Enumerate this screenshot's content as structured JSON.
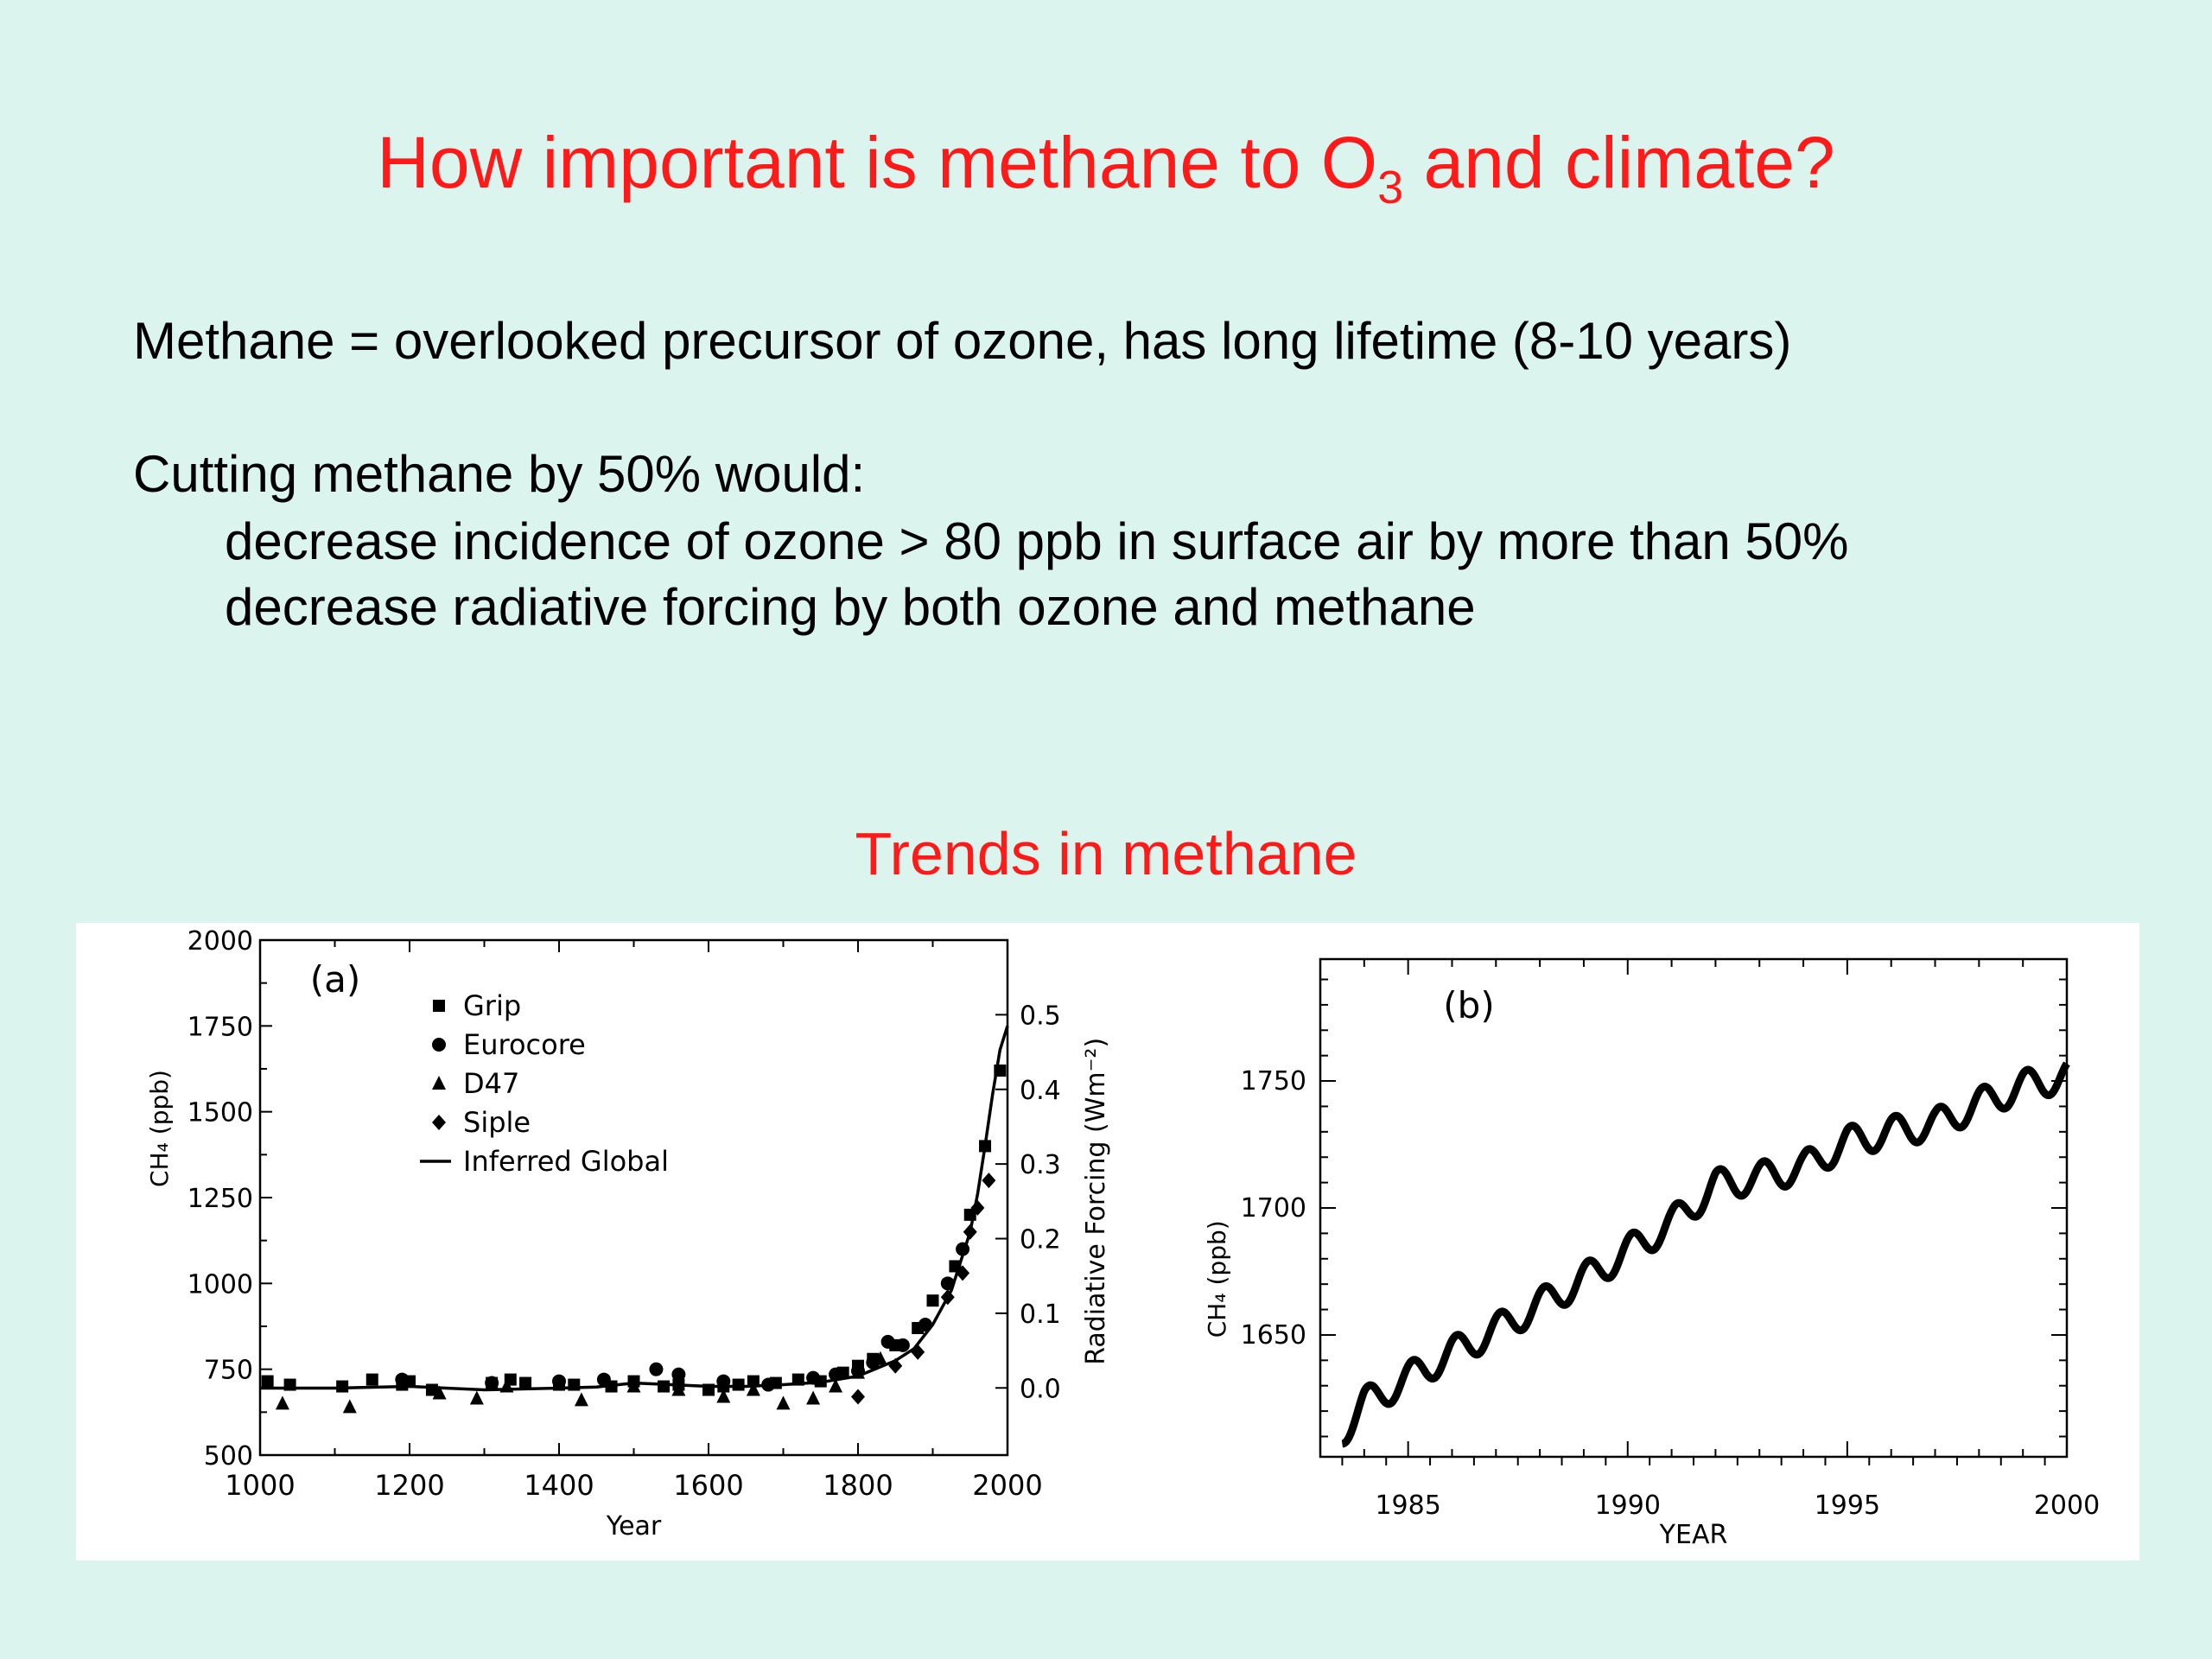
{
  "slide": {
    "title_pre": "How important is methane to O",
    "title_sub": "3",
    "title_post": " and climate?",
    "line1": "Methane = overlooked precursor of ozone, has long lifetime (8-10 years)",
    "line2": "Cutting methane by 50% would:",
    "line3": "decrease incidence of ozone > 80 ppb in surface air by more than 50%",
    "line4": "decrease radiative forcing by both ozone and methane",
    "subtitle": "Trends in methane"
  },
  "chart_data": [
    {
      "type": "scatter",
      "panel_label": "(a)",
      "xlabel": "Year",
      "ylabel": "CH₄ (ppb)",
      "y2label": "Radiative Forcing (Wm⁻²)",
      "xlim": [
        1000,
        2000
      ],
      "ylim": [
        500,
        2000
      ],
      "y2lim": [
        -0.09,
        0.6
      ],
      "xticks": [
        "1000",
        "1200",
        "1400",
        "1600",
        "1800",
        "2000"
      ],
      "yticks": [
        "500",
        "750",
        "1000",
        "1250",
        "1500",
        "1750",
        "2000"
      ],
      "y2ticks": [
        "0.0",
        "0.1",
        "0.2",
        "0.3",
        "0.4",
        "0.5"
      ],
      "legend": [
        "Grip",
        "Eurocore",
        "D47",
        "Siple",
        "Inferred Global"
      ],
      "legend_position": "top-left",
      "series": [
        {
          "name": "Grip",
          "marker": "square",
          "x": [
            1010,
            1040,
            1110,
            1150,
            1190,
            1200,
            1230,
            1310,
            1335,
            1355,
            1400,
            1420,
            1470,
            1500,
            1540,
            1560,
            1600,
            1620,
            1640,
            1660,
            1690,
            1720,
            1750,
            1780,
            1800,
            1820,
            1850,
            1880,
            1900,
            1930,
            1950,
            1970,
            1990
          ],
          "y": [
            715,
            705,
            700,
            720,
            705,
            715,
            690,
            710,
            720,
            710,
            705,
            705,
            700,
            715,
            700,
            705,
            690,
            700,
            705,
            715,
            710,
            720,
            715,
            740,
            760,
            780,
            820,
            870,
            950,
            1050,
            1200,
            1400,
            1620
          ]
        },
        {
          "name": "Eurocore",
          "marker": "circle",
          "x": [
            1190,
            1310,
            1400,
            1460,
            1530,
            1560,
            1620,
            1680,
            1740,
            1770,
            1800,
            1820,
            1840,
            1860,
            1890,
            1920,
            1940
          ],
          "y": [
            720,
            710,
            715,
            720,
            750,
            735,
            715,
            705,
            725,
            735,
            745,
            770,
            830,
            820,
            880,
            1000,
            1100
          ]
        },
        {
          "name": "D47",
          "marker": "triangle",
          "x": [
            1030,
            1120,
            1240,
            1290,
            1330,
            1430,
            1500,
            1560,
            1620,
            1660,
            1700,
            1740,
            1770,
            1800,
            1830
          ],
          "y": [
            650,
            640,
            680,
            665,
            700,
            660,
            700,
            690,
            670,
            690,
            650,
            665,
            700,
            740,
            780
          ]
        },
        {
          "name": "Siple",
          "marker": "diamond",
          "x": [
            1800,
            1850,
            1880,
            1920,
            1940,
            1950,
            1960,
            1975
          ],
          "y": [
            670,
            760,
            800,
            960,
            1030,
            1150,
            1220,
            1300
          ]
        },
        {
          "name": "Inferred Global",
          "marker": "line",
          "x": [
            1000,
            1100,
            1200,
            1300,
            1400,
            1450,
            1500,
            1550,
            1600,
            1650,
            1700,
            1750,
            1800,
            1850,
            1875,
            1900,
            1925,
            1950,
            1960,
            1970,
            1980,
            1990,
            2000
          ],
          "y": [
            695,
            695,
            700,
            690,
            695,
            698,
            710,
            705,
            700,
            700,
            705,
            712,
            730,
            775,
            810,
            880,
            980,
            1150,
            1260,
            1400,
            1550,
            1680,
            1750
          ]
        }
      ]
    },
    {
      "type": "line",
      "panel_label": "(b)",
      "xlabel": "YEAR",
      "ylabel": "CH₄ (ppb)",
      "xlim": [
        1983,
        2000
      ],
      "ylim": [
        1602,
        1798
      ],
      "xticks": [
        "1985",
        "1990",
        "1995",
        "2000"
      ],
      "yticks": [
        "1650",
        "1700",
        "1750"
      ],
      "series": [
        {
          "name": "",
          "x": [
            1983.5,
            1984,
            1985,
            1986,
            1987,
            1988,
            1989,
            1990,
            1991,
            1992,
            1993,
            1994,
            1995,
            1996,
            1997,
            1998,
            1999,
            2000
          ],
          "y": [
            1612,
            1623,
            1633,
            1643,
            1652,
            1662,
            1672,
            1683,
            1694,
            1709,
            1712,
            1716,
            1726,
            1730,
            1733,
            1741,
            1748,
            1752
          ],
          "seasonal_amplitude_ppb": 6
        }
      ]
    }
  ]
}
